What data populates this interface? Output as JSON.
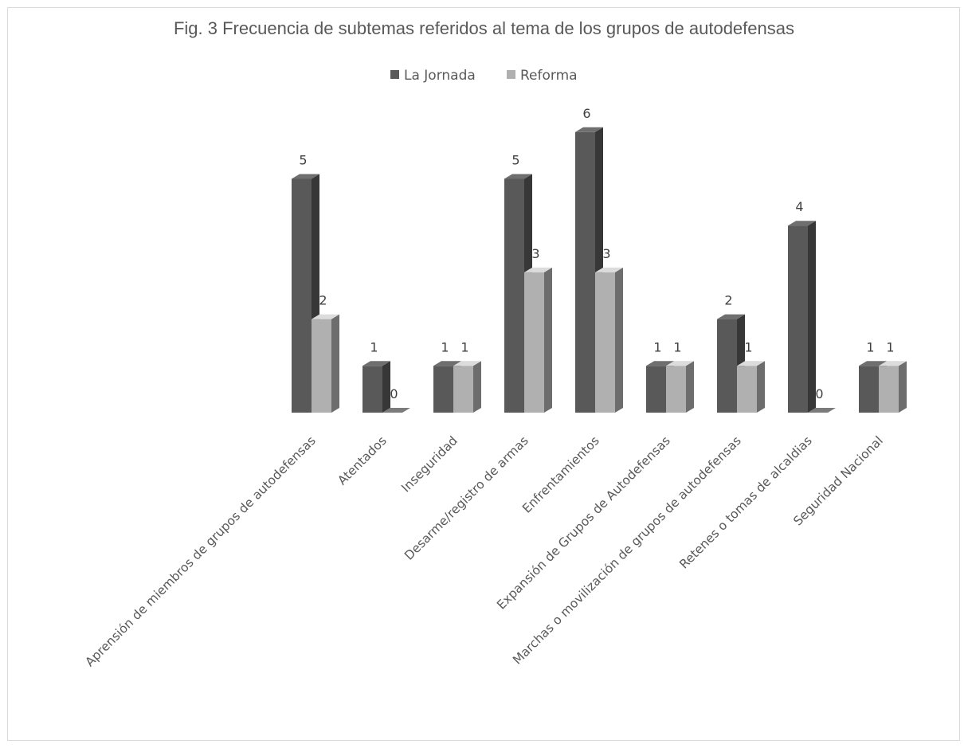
{
  "chart_data": {
    "type": "bar",
    "title": "Fig. 3 Frecuencia de subtemas referidos al tema de los grupos de autodefensas",
    "xlabel": "",
    "ylabel": "",
    "ylim": [
      0,
      6
    ],
    "grid": false,
    "legend_position": "top",
    "three_d": true,
    "categories": [
      "Aprensión de miembros de grupos de autodefensas",
      "Atentados",
      "Inseguridad",
      "Desarme/registro de armas",
      "Enfrentamientos",
      "Expansión de Grupos de Autodefensas",
      "Marchas o movilización de grupos de autodefensas",
      "Retenes o tomas de alcaldias",
      "Seguridad Nacional"
    ],
    "series": [
      {
        "name": "La Jornada",
        "color": "#595959",
        "values": [
          5,
          1,
          1,
          5,
          6,
          1,
          2,
          4,
          1
        ]
      },
      {
        "name": "Reforma",
        "color": "#b0b0b0",
        "values": [
          2,
          0,
          1,
          3,
          3,
          1,
          1,
          0,
          1
        ]
      }
    ]
  }
}
